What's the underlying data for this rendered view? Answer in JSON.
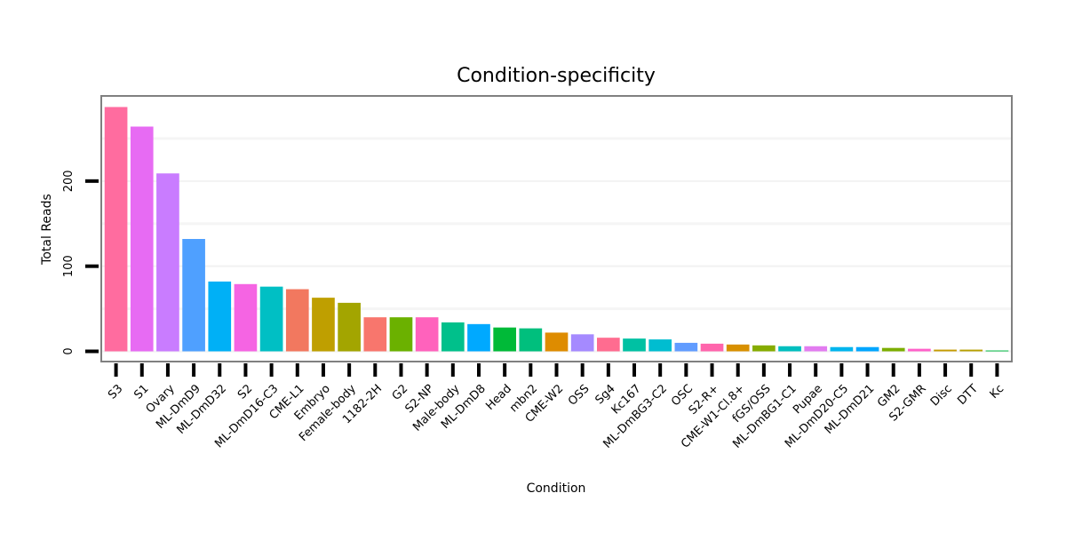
{
  "chart_data": {
    "type": "bar",
    "title": "Condition-specificity",
    "xlabel": "Condition",
    "ylabel": "Total Reads",
    "ylim": [
      -12,
      300
    ],
    "yticks": [
      0,
      100,
      200
    ],
    "grid": true,
    "legend": "none",
    "categories": [
      "S3",
      "S1",
      "Ovary",
      "ML-DmD9",
      "ML-DmD32",
      "S2",
      "ML-DmD16-C3",
      "CME-L1",
      "Embryo",
      "Female-body",
      "1182-2H",
      "G2",
      "S2-NP",
      "Male-body",
      "ML-DmD8",
      "Head",
      "mbn2",
      "CME-W2",
      "OSS",
      "Sg4",
      "Kc167",
      "ML-DmBG3-C2",
      "OSC",
      "S2-R+",
      "CME-W1-Cl.8+",
      "fGS/OSS",
      "ML-DmBG1-C1",
      "Pupae",
      "ML-DmD20-C5",
      "ML-DmD21",
      "GM2",
      "S2-GMR",
      "Disc",
      "DTT",
      "Kc"
    ],
    "values": [
      287,
      264,
      209,
      132,
      82,
      79,
      76,
      73,
      63,
      57,
      40,
      40,
      40,
      34,
      32,
      28,
      27,
      22,
      20,
      16,
      15,
      14,
      10,
      9,
      8,
      7,
      6,
      6,
      5,
      5,
      4,
      3,
      2,
      2,
      1
    ],
    "colors": [
      "#FF6C9F",
      "#E76BF3",
      "#C97CFF",
      "#4FA0FF",
      "#00B0F6",
      "#F564E3",
      "#00BFC4",
      "#F2785F",
      "#BF9F00",
      "#A3A500",
      "#F8766D",
      "#6BB100",
      "#FF62BC",
      "#00C08B",
      "#00A9FF",
      "#00BA38",
      "#00BF7D",
      "#DE8C00",
      "#A58AFF",
      "#FF6C90",
      "#00C1A3",
      "#00BDD0",
      "#619CFF",
      "#FF65AC",
      "#D89000",
      "#86AC00",
      "#00BFBF",
      "#E27CF0",
      "#00B5EE",
      "#00A6FF",
      "#7CAE00",
      "#FF61C9",
      "#C49A00",
      "#B79F00",
      "#00BA42"
    ]
  }
}
